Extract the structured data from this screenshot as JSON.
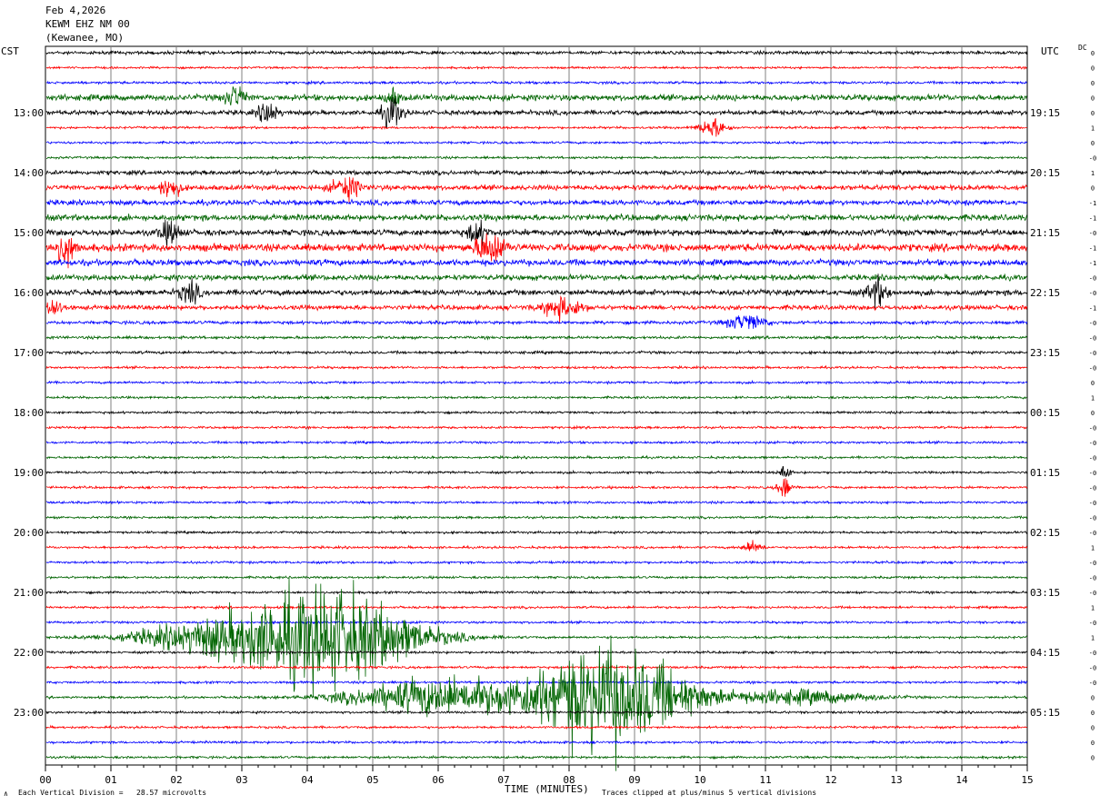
{
  "header": {
    "date": "Feb 4,2026",
    "station": "KEWM EHZ NM 00",
    "location": "(Kewanee, MO)"
  },
  "labels": {
    "left_tz": "CST",
    "right_tz": "UTC",
    "dc": "DC",
    "xaxis_title": "TIME (MINUTES)",
    "footer_left": "Each Vertical Division =   28.57 microvolts",
    "footer_right": "Traces clipped at plus/minus 5 vertical divisions",
    "corner_mark": "∧"
  },
  "colors": {
    "trace_cycle": [
      "#000000",
      "#ff0000",
      "#0000ff",
      "#006400"
    ],
    "grid": "#808080"
  },
  "chart_data": {
    "type": "line",
    "title": "KEWM EHZ NM 00",
    "xlabel": "TIME (MINUTES)",
    "xlim": [
      0,
      15
    ],
    "x_ticks": [
      "00",
      "01",
      "02",
      "03",
      "04",
      "05",
      "06",
      "07",
      "08",
      "09",
      "10",
      "11",
      "12",
      "13",
      "14",
      "15"
    ],
    "trace_count": 48,
    "traces_per_hour": 4,
    "cst_ticks": [
      "13:00",
      "14:00",
      "15:00",
      "16:00",
      "17:00",
      "18:00",
      "19:00",
      "20:00",
      "21:00",
      "22:00",
      "23:00"
    ],
    "utc_ticks": [
      "19:15",
      "20:15",
      "21:15",
      "22:15",
      "23:15",
      "00:15",
      "01:15",
      "02:15",
      "03:15",
      "04:15",
      "05:15"
    ],
    "dc_offsets": [
      0,
      0,
      0,
      0,
      0,
      1,
      0,
      0,
      1,
      0,
      -1,
      -1,
      0,
      -1,
      -1,
      0,
      0,
      -1,
      0,
      0,
      0,
      0,
      0,
      1,
      0,
      0,
      0,
      0,
      0,
      0,
      0,
      0,
      0,
      1,
      0,
      0,
      0,
      1,
      0,
      1,
      0,
      0,
      0,
      0,
      0,
      0,
      0,
      0
    ],
    "amplitude_scale": "Each Vertical Division = 28.57 microvolts",
    "clip": "Traces clipped at plus/minus 5 vertical divisions",
    "noise_levels": [
      1.4,
      0.9,
      1.1,
      2.6,
      2.0,
      1.0,
      1.0,
      1.0,
      1.8,
      2.2,
      2.2,
      2.6,
      2.6,
      3.2,
      2.6,
      2.4,
      2.4,
      2.0,
      1.4,
      1.2,
      1.2,
      1.0,
      1.0,
      1.0,
      1.0,
      1.0,
      1.0,
      1.0,
      1.0,
      1.0,
      1.0,
      1.0,
      1.0,
      1.0,
      1.0,
      1.0,
      1.0,
      1.0,
      1.0,
      1.0,
      1.0,
      1.0,
      1.0,
      1.0,
      1.0,
      1.0,
      1.0,
      1.0
    ],
    "events": [
      {
        "trace": 3,
        "minute": 2.9,
        "amp": 10,
        "width": 0.2
      },
      {
        "trace": 3,
        "minute": 5.3,
        "amp": 8,
        "width": 0.15
      },
      {
        "trace": 4,
        "minute": 3.4,
        "amp": 10,
        "width": 0.2
      },
      {
        "trace": 4,
        "minute": 5.3,
        "amp": 14,
        "width": 0.2
      },
      {
        "trace": 5,
        "minute": 10.2,
        "amp": 8,
        "width": 0.3
      },
      {
        "trace": 9,
        "minute": 1.9,
        "amp": 10,
        "width": 0.2
      },
      {
        "trace": 9,
        "minute": 4.6,
        "amp": 9,
        "width": 0.3
      },
      {
        "trace": 12,
        "minute": 1.9,
        "amp": 10,
        "width": 0.2
      },
      {
        "trace": 12,
        "minute": 6.6,
        "amp": 10,
        "width": 0.2
      },
      {
        "trace": 13,
        "minute": 0.3,
        "amp": 14,
        "width": 0.2
      },
      {
        "trace": 13,
        "minute": 6.8,
        "amp": 14,
        "width": 0.3
      },
      {
        "trace": 16,
        "minute": 2.2,
        "amp": 10,
        "width": 0.2
      },
      {
        "trace": 16,
        "minute": 12.7,
        "amp": 12,
        "width": 0.2
      },
      {
        "trace": 17,
        "minute": 0.1,
        "amp": 8,
        "width": 0.2
      },
      {
        "trace": 17,
        "minute": 7.9,
        "amp": 9,
        "width": 0.4
      },
      {
        "trace": 18,
        "minute": 10.7,
        "amp": 7,
        "width": 0.4
      },
      {
        "trace": 28,
        "minute": 11.3,
        "amp": 8,
        "width": 0.1
      },
      {
        "trace": 29,
        "minute": 11.3,
        "amp": 10,
        "width": 0.15
      },
      {
        "trace": 33,
        "minute": 10.8,
        "amp": 5,
        "width": 0.2
      },
      {
        "trace": 39,
        "minute": 4.3,
        "amp": 42,
        "width": 1.8
      },
      {
        "trace": 39,
        "minute": 2.5,
        "amp": 12,
        "width": 1.6
      },
      {
        "trace": 43,
        "minute": 8.6,
        "amp": 46,
        "width": 1.6
      },
      {
        "trace": 43,
        "minute": 6.0,
        "amp": 16,
        "width": 1.8
      },
      {
        "trace": 43,
        "minute": 11.5,
        "amp": 6,
        "width": 1.5
      }
    ]
  }
}
